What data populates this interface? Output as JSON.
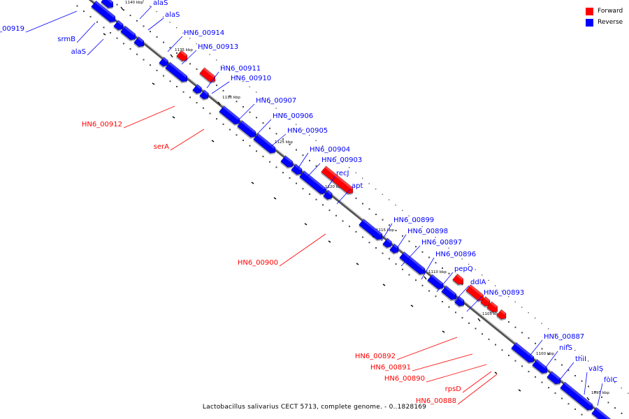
{
  "legend": {
    "forward_label": "Forward",
    "reverse_label": "Reverse",
    "forward_color": "#ff0000",
    "reverse_color": "#0000ff"
  },
  "caption": "Lactobacillus salivarius CECT 5713, complete genome. - 0..1828169",
  "ticks": [
    "1140 kbp",
    "1135 kbp",
    "1130 kbp",
    "1125 kbp",
    "1120 kbp",
    "1115 kbp",
    "1110 kbp",
    "1105 kbp",
    "1100 kbp",
    "1095 kbp"
  ],
  "genes": [
    {
      "name": "HN6_00919",
      "strand": "reverse"
    },
    {
      "name": "srmB",
      "strand": "reverse"
    },
    {
      "name": "alaS",
      "strand": "reverse"
    },
    {
      "name": "alaS",
      "strand": "reverse"
    },
    {
      "name": "alaS",
      "strand": "reverse"
    },
    {
      "name": "HN6_00914",
      "strand": "reverse"
    },
    {
      "name": "HN6_00913",
      "strand": "reverse"
    },
    {
      "name": "HN6_00911",
      "strand": "reverse"
    },
    {
      "name": "HN6_00910",
      "strand": "reverse"
    },
    {
      "name": "HN6_00912",
      "strand": "forward"
    },
    {
      "name": "HN6_00907",
      "strand": "reverse"
    },
    {
      "name": "HN6_00906",
      "strand": "reverse"
    },
    {
      "name": "serA",
      "strand": "forward"
    },
    {
      "name": "HN6_00905",
      "strand": "reverse"
    },
    {
      "name": "HN6_00904",
      "strand": "reverse"
    },
    {
      "name": "HN6_00903",
      "strand": "reverse"
    },
    {
      "name": "recJ",
      "strand": "reverse"
    },
    {
      "name": "apt",
      "strand": "reverse"
    },
    {
      "name": "HN6_00900",
      "strand": "forward"
    },
    {
      "name": "HN6_00899",
      "strand": "reverse"
    },
    {
      "name": "HN6_00898",
      "strand": "reverse"
    },
    {
      "name": "HN6_00897",
      "strand": "reverse"
    },
    {
      "name": "HN6_00896",
      "strand": "reverse"
    },
    {
      "name": "pepQ",
      "strand": "reverse"
    },
    {
      "name": "ddlA",
      "strand": "reverse"
    },
    {
      "name": "HN6_00893",
      "strand": "reverse"
    },
    {
      "name": "HN6_00892",
      "strand": "forward"
    },
    {
      "name": "HN6_00891",
      "strand": "forward"
    },
    {
      "name": "HN6_00890",
      "strand": "forward"
    },
    {
      "name": "rpsD",
      "strand": "forward"
    },
    {
      "name": "HN6_00888",
      "strand": "forward"
    },
    {
      "name": "HN6_00887",
      "strand": "reverse"
    },
    {
      "name": "nifS",
      "strand": "reverse"
    },
    {
      "name": "thiI",
      "strand": "reverse"
    },
    {
      "name": "valS",
      "strand": "reverse"
    },
    {
      "name": "folC",
      "strand": "reverse"
    }
  ]
}
